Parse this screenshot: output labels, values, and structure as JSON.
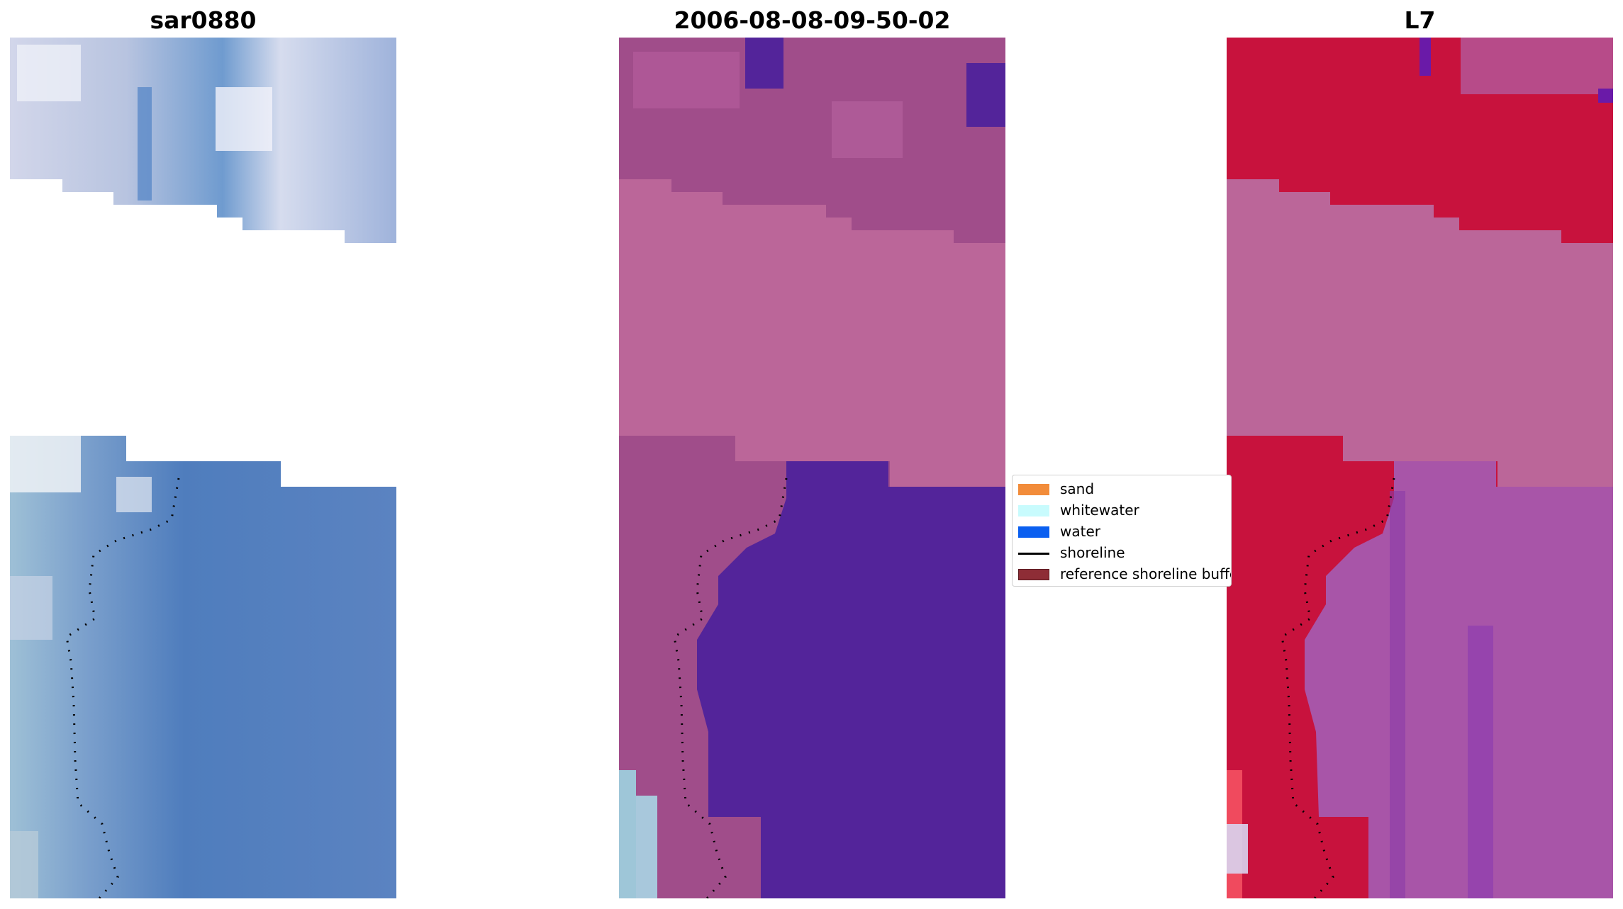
{
  "panels": [
    {
      "title": "sar0880"
    },
    {
      "title": "2006-08-08-09-50-02"
    },
    {
      "title": "L7"
    }
  ],
  "legend": {
    "items": [
      {
        "label": "sand",
        "color": "#f28c3a",
        "kind": "patch"
      },
      {
        "label": "whitewater",
        "color": "#c8fbfd",
        "kind": "patch"
      },
      {
        "label": "water",
        "color": "#0a5ff0",
        "kind": "patch"
      },
      {
        "label": "shoreline",
        "color": "#000000",
        "kind": "line"
      },
      {
        "label": "reference shoreline buffer",
        "color": "#8e2d36",
        "kind": "patch"
      }
    ]
  },
  "colors": {
    "rgb_sky": "#a9b8dc",
    "rgb_water": "#5a82c0",
    "classified_land": "#a04d8a",
    "classified_nodata": "#bb6699",
    "classified_water": "#53249a",
    "ndwi_red": "#c8123d",
    "ndwi_nodata": "#bb6699",
    "ndwi_purple": "#a855a8"
  }
}
